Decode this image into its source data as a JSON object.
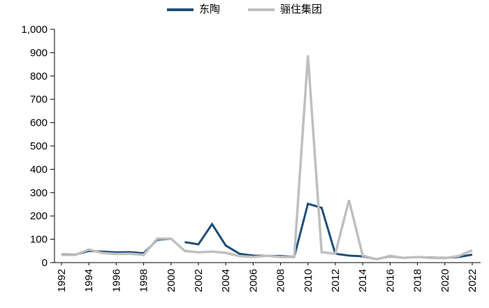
{
  "chart_data": {
    "type": "line",
    "title": "",
    "grid": false,
    "legend_position": "top-center",
    "axis_color": "#000000",
    "x_axis": {
      "range": [
        1992,
        2022
      ],
      "tick_labels": [
        "1992",
        "1994",
        "1996",
        "1998",
        "2000",
        "2002",
        "2004",
        "2006",
        "2008",
        "2010",
        "2012",
        "2014",
        "2016",
        "2018",
        "2020",
        "2022"
      ],
      "tick_label_rotation": -90
    },
    "y_axis": {
      "range": [
        0,
        1000
      ],
      "tick_labels": [
        "0",
        "100",
        "200",
        "300",
        "400",
        "500",
        "600",
        "700",
        "800",
        "900",
        "1,000"
      ]
    },
    "series": [
      {
        "name": "东陶",
        "color": "#1f4e79",
        "stroke_width": 3,
        "segments": [
          [
            [
              1992,
              35
            ],
            [
              1993,
              34
            ],
            [
              1994,
              50
            ],
            [
              1995,
              47
            ],
            [
              1996,
              44
            ],
            [
              1997,
              45
            ],
            [
              1998,
              40
            ],
            [
              1999,
              98
            ],
            [
              2000,
              102
            ]
          ],
          [
            [
              2001,
              88
            ],
            [
              2002,
              78
            ],
            [
              2003,
              165
            ],
            [
              2004,
              73
            ],
            [
              2005,
              38
            ],
            [
              2006,
              30
            ],
            [
              2007,
              29
            ],
            [
              2008,
              28
            ],
            [
              2009,
              25
            ],
            [
              2010,
              252
            ],
            [
              2011,
              235
            ],
            [
              2012,
              38
            ],
            [
              2013,
              30
            ],
            [
              2014,
              27
            ],
            [
              2015,
              15
            ],
            [
              2016,
              27
            ],
            [
              2017,
              20
            ],
            [
              2018,
              24
            ],
            [
              2019,
              22
            ],
            [
              2020,
              20
            ],
            [
              2021,
              24
            ],
            [
              2022,
              34
            ]
          ]
        ]
      },
      {
        "name": "骊住集团",
        "color": "#bfbfbf",
        "stroke_width": 3.5,
        "segments": [
          [
            [
              1992,
              33
            ],
            [
              1993,
              33
            ],
            [
              1994,
              56
            ],
            [
              1995,
              41
            ],
            [
              1996,
              37
            ],
            [
              1997,
              38
            ],
            [
              1998,
              33
            ],
            [
              1999,
              103
            ],
            [
              2000,
              103
            ],
            [
              2001,
              50
            ],
            [
              2002,
              44
            ],
            [
              2003,
              47
            ],
            [
              2004,
              42
            ],
            [
              2005,
              28
            ],
            [
              2006,
              24
            ],
            [
              2007,
              29
            ],
            [
              2008,
              24
            ],
            [
              2009,
              24
            ],
            [
              2010,
              888
            ],
            [
              2011,
              45
            ],
            [
              2012,
              38
            ],
            [
              2013,
              268
            ],
            [
              2014,
              30
            ],
            [
              2015,
              14
            ],
            [
              2016,
              29
            ],
            [
              2017,
              20
            ],
            [
              2018,
              24
            ],
            [
              2019,
              20
            ],
            [
              2020,
              19
            ],
            [
              2021,
              28
            ],
            [
              2022,
              52
            ]
          ]
        ]
      }
    ]
  }
}
